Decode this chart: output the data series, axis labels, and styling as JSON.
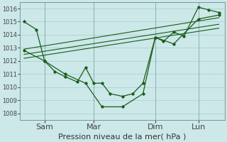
{
  "background_color": "#cce8e8",
  "grid_color": "#aacccc",
  "line_color": "#1a5c1a",
  "title": "Pression niveau de la mer( hPa )",
  "ylim": [
    1007.5,
    1016.5
  ],
  "yticks": [
    1008,
    1009,
    1010,
    1011,
    1012,
    1013,
    1014,
    1015,
    1016
  ],
  "xtick_labels": [
    "Sam",
    "Mar",
    "Dim",
    "Lun"
  ],
  "xtick_positions": [
    0.12,
    0.36,
    0.66,
    0.87
  ],
  "vline_positions": [
    0.12,
    0.36,
    0.66,
    0.87
  ],
  "series_jagged1": {
    "x": [
      0.02,
      0.08,
      0.12,
      0.17,
      0.22,
      0.28,
      0.32,
      0.36,
      0.4,
      0.44,
      0.5,
      0.55,
      0.6,
      0.66,
      0.7,
      0.75,
      0.8,
      0.87,
      0.92,
      0.97
    ],
    "y": [
      1015.0,
      1014.4,
      1012.0,
      1011.2,
      1010.8,
      1010.4,
      1011.5,
      1010.3,
      1010.3,
      1009.5,
      1009.3,
      1009.5,
      1010.3,
      1013.8,
      1013.5,
      1014.2,
      1013.9,
      1016.1,
      1015.9,
      1015.7
    ]
  },
  "series_jagged2": {
    "x": [
      0.02,
      0.12,
      0.22,
      0.32,
      0.4,
      0.5,
      0.6,
      0.66,
      0.75,
      0.87,
      0.97
    ],
    "y": [
      1012.8,
      1012.0,
      1011.0,
      1010.3,
      1008.5,
      1008.5,
      1009.5,
      1013.8,
      1013.3,
      1015.2,
      1015.5
    ]
  },
  "series_trend1": {
    "x": [
      0.02,
      0.97
    ],
    "y": [
      1012.9,
      1015.3
    ]
  },
  "series_trend2": {
    "x": [
      0.02,
      0.97
    ],
    "y": [
      1012.5,
      1014.8
    ]
  },
  "series_trend3": {
    "x": [
      0.02,
      0.97
    ],
    "y": [
      1012.2,
      1014.5
    ]
  },
  "fontsize_tick": 6,
  "fontsize_xlabel": 8
}
